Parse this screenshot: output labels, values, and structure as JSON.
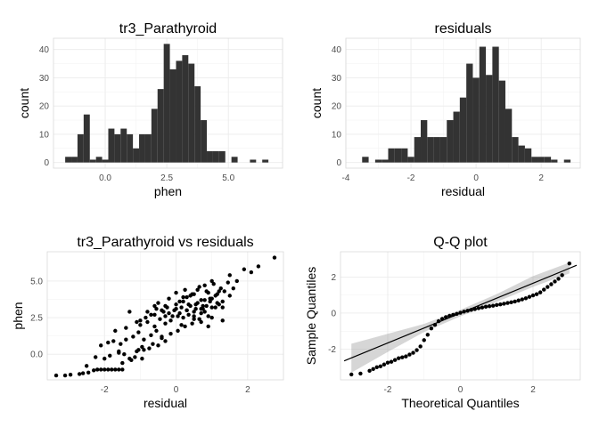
{
  "chart_data": [
    {
      "type": "bar",
      "title": "tr3_Parathyroid",
      "xlabel": "phen",
      "ylabel": "count",
      "xlim": [
        -2.1,
        7.2
      ],
      "ylim": [
        -2,
        44
      ],
      "x_ticks": [
        0,
        2.5,
        5
      ],
      "x_tick_labels": [
        "0.0",
        "2.5",
        "5.0"
      ],
      "y_ticks": [
        0,
        10,
        20,
        30,
        40
      ],
      "bin_width": 0.25,
      "bins": [
        {
          "x": -1.5,
          "count": 2
        },
        {
          "x": -1.25,
          "count": 2
        },
        {
          "x": -1.0,
          "count": 10
        },
        {
          "x": -0.75,
          "count": 17
        },
        {
          "x": -0.5,
          "count": 1
        },
        {
          "x": -0.25,
          "count": 2
        },
        {
          "x": 0.0,
          "count": 1
        },
        {
          "x": 0.25,
          "count": 12
        },
        {
          "x": 0.5,
          "count": 10
        },
        {
          "x": 0.75,
          "count": 12
        },
        {
          "x": 1.0,
          "count": 10
        },
        {
          "x": 1.25,
          "count": 5
        },
        {
          "x": 1.5,
          "count": 10
        },
        {
          "x": 1.75,
          "count": 10
        },
        {
          "x": 2.0,
          "count": 19
        },
        {
          "x": 2.25,
          "count": 26
        },
        {
          "x": 2.5,
          "count": 42
        },
        {
          "x": 2.75,
          "count": 33
        },
        {
          "x": 3.0,
          "count": 36
        },
        {
          "x": 3.25,
          "count": 38
        },
        {
          "x": 3.5,
          "count": 35
        },
        {
          "x": 3.75,
          "count": 27
        },
        {
          "x": 4.0,
          "count": 15
        },
        {
          "x": 4.25,
          "count": 4
        },
        {
          "x": 4.5,
          "count": 4
        },
        {
          "x": 4.75,
          "count": 4
        },
        {
          "x": 5.25,
          "count": 2
        },
        {
          "x": 6.0,
          "count": 1
        },
        {
          "x": 6.5,
          "count": 1
        }
      ]
    },
    {
      "type": "bar",
      "title": "residuals",
      "xlabel": "residual",
      "ylabel": "count",
      "xlim": [
        -4,
        3.2
      ],
      "ylim": [
        -2,
        44
      ],
      "x_ticks": [
        -4,
        -2,
        0,
        2
      ],
      "x_tick_labels": [
        "-4",
        "-2",
        "0",
        "2"
      ],
      "y_ticks": [
        0,
        10,
        20,
        30,
        40
      ],
      "bin_width": 0.2,
      "bins": [
        {
          "x": -3.4,
          "count": 2
        },
        {
          "x": -3.0,
          "count": 1
        },
        {
          "x": -2.8,
          "count": 1
        },
        {
          "x": -2.6,
          "count": 5
        },
        {
          "x": -2.4,
          "count": 5
        },
        {
          "x": -2.2,
          "count": 5
        },
        {
          "x": -2.0,
          "count": 2
        },
        {
          "x": -1.8,
          "count": 9
        },
        {
          "x": -1.6,
          "count": 15
        },
        {
          "x": -1.4,
          "count": 9
        },
        {
          "x": -1.2,
          "count": 9
        },
        {
          "x": -1.0,
          "count": 9
        },
        {
          "x": -0.8,
          "count": 15
        },
        {
          "x": -0.6,
          "count": 18
        },
        {
          "x": -0.4,
          "count": 23
        },
        {
          "x": -0.2,
          "count": 35
        },
        {
          "x": 0.0,
          "count": 30
        },
        {
          "x": 0.2,
          "count": 41
        },
        {
          "x": 0.4,
          "count": 31
        },
        {
          "x": 0.6,
          "count": 41
        },
        {
          "x": 0.8,
          "count": 29
        },
        {
          "x": 1.0,
          "count": 19
        },
        {
          "x": 1.2,
          "count": 9
        },
        {
          "x": 1.4,
          "count": 6
        },
        {
          "x": 1.6,
          "count": 5
        },
        {
          "x": 1.8,
          "count": 2
        },
        {
          "x": 2.0,
          "count": 2
        },
        {
          "x": 2.2,
          "count": 2
        },
        {
          "x": 2.4,
          "count": 1
        },
        {
          "x": 2.8,
          "count": 1
        }
      ]
    },
    {
      "type": "scatter",
      "title": "tr3_Parathyroid vs residuals",
      "xlabel": "residual",
      "ylabel": "phen",
      "xlim": [
        -3.6,
        3.0
      ],
      "ylim": [
        -1.75,
        7.0
      ],
      "x_ticks": [
        -2,
        0,
        2
      ],
      "x_tick_labels": [
        "-2",
        "0",
        "2"
      ],
      "y_ticks": [
        0,
        2.5,
        5
      ],
      "y_tick_labels": [
        "0.0",
        "2.5",
        "5.0"
      ],
      "x": [
        -3.35,
        -3.1,
        -2.95,
        -2.7,
        -2.6,
        -2.45,
        -2.3,
        -2.2,
        -2.1,
        -2.0,
        -1.9,
        -1.8,
        -1.7,
        -1.6,
        -1.5,
        -2.25,
        -2.0,
        -1.85,
        -1.6,
        -1.45,
        -1.3,
        -1.15,
        -1.05,
        -0.95,
        -2.1,
        -1.9,
        -1.75,
        -1.55,
        -1.4,
        -1.2,
        -1.05,
        -0.9,
        -0.7,
        -0.55,
        -0.4,
        -1.7,
        -1.4,
        -1.0,
        -0.8,
        -0.6,
        -0.45,
        -0.3,
        -0.15,
        0.05,
        0.2,
        0.35,
        0.5,
        0.7,
        0.9,
        -1.1,
        -0.85,
        -0.6,
        -0.35,
        -0.1,
        0.1,
        0.3,
        0.5,
        0.7,
        0.85,
        1.0,
        1.15,
        -0.8,
        -0.55,
        -0.3,
        -0.05,
        0.15,
        0.35,
        0.55,
        0.75,
        0.95,
        1.2,
        -0.5,
        -0.25,
        0.0,
        0.2,
        0.4,
        0.6,
        0.8,
        1.0,
        1.3,
        1.5,
        -0.2,
        0.1,
        0.3,
        0.5,
        0.7,
        0.9,
        1.1,
        1.35,
        1.6,
        0.0,
        0.25,
        0.45,
        0.65,
        0.85,
        1.05,
        1.25,
        1.45,
        0.2,
        0.4,
        0.6,
        0.8,
        1.0,
        1.2,
        0.3,
        0.55,
        0.75,
        0.95,
        1.15,
        0.5,
        0.8,
        1.1,
        0.7,
        1.0,
        0.9,
        1.3,
        -0.9,
        -0.65,
        -0.4,
        -0.15,
        0.05,
        0.25,
        0.45,
        0.65,
        -1.5,
        -1.25,
        -1.1,
        -0.95,
        -0.75,
        -0.5,
        -0.3,
        -1.0,
        -0.7,
        -0.4,
        -0.2,
        0.0,
        -0.6,
        -0.3,
        0.15,
        1.5,
        1.7,
        1.9,
        2.1,
        2.3,
        2.75,
        1.3,
        -1.3,
        -1.6,
        -2.5
      ],
      "y": [
        -1.45,
        -1.45,
        -1.4,
        -1.35,
        -1.3,
        -1.25,
        -1.1,
        -1.05,
        -1.05,
        -1.05,
        -1.05,
        -1.05,
        -1.05,
        -1.05,
        -1.05,
        -0.2,
        -0.3,
        -0.1,
        0.1,
        0.0,
        -0.3,
        -0.2,
        0.3,
        0.5,
        0.6,
        0.8,
        0.9,
        0.7,
        1.0,
        1.2,
        1.5,
        1.0,
        1.3,
        1.6,
        1.2,
        1.6,
        1.8,
        2.0,
        2.2,
        1.9,
        2.4,
        2.1,
        2.3,
        2.6,
        2.5,
        2.7,
        2.4,
        2.8,
        2.6,
        2.2,
        2.5,
        2.7,
        2.9,
        2.6,
        2.8,
        3.0,
        2.9,
        3.1,
        3.3,
        3.2,
        3.5,
        2.9,
        3.1,
        3.3,
        3.0,
        3.2,
        3.4,
        3.1,
        3.3,
        3.6,
        3.4,
        3.5,
        3.2,
        3.4,
        3.6,
        3.3,
        3.5,
        3.7,
        3.8,
        3.6,
        4.0,
        3.8,
        3.6,
        3.9,
        4.1,
        3.7,
        4.2,
        4.0,
        4.3,
        4.5,
        4.2,
        4.4,
        4.1,
        4.6,
        4.3,
        4.8,
        4.5,
        4.9,
        3.9,
        4.0,
        4.4,
        4.7,
        5.0,
        4.3,
        3.0,
        3.4,
        3.1,
        3.8,
        4.1,
        2.6,
        2.9,
        3.2,
        2.2,
        2.5,
        1.9,
        2.3,
        0.3,
        0.7,
        1.1,
        1.4,
        1.6,
        1.9,
        2.1,
        2.4,
        -0.6,
        -0.4,
        0.2,
        -0.3,
        0.4,
        0.6,
        0.9,
        2.3,
        2.7,
        3.0,
        2.8,
        3.1,
        3.3,
        2.6,
        2.0,
        5.4,
        5.0,
        5.8,
        5.6,
        6.0,
        6.6,
        3.2,
        2.9,
        0.2,
        -0.8
      ]
    },
    {
      "type": "scatter",
      "title": "Q-Q plot",
      "xlabel": "Theoretical Quantiles",
      "ylabel": "Sample Quantiles",
      "xlim": [
        -3.3,
        3.3
      ],
      "ylim": [
        -3.7,
        3.4
      ],
      "x_ticks": [
        -2,
        0,
        2
      ],
      "x_tick_labels": [
        "-2",
        "0",
        "2"
      ],
      "y_ticks": [
        -2,
        0,
        2
      ],
      "y_tick_labels": [
        "-2",
        "0",
        "2"
      ],
      "reference_line": {
        "x": [
          -3.2,
          3.2
        ],
        "y": [
          -2.65,
          2.65
        ]
      },
      "confidence_band": {
        "x": [
          -3.0,
          -2.0,
          -1.0,
          0.0,
          1.0,
          2.0,
          3.0
        ],
        "lower": [
          -3.3,
          -2.15,
          -1.05,
          -0.18,
          0.62,
          1.45,
          2.2
        ],
        "upper": [
          -1.7,
          -1.15,
          -0.6,
          0.18,
          1.05,
          2.05,
          2.8
        ]
      },
      "x": [
        -3.0,
        -2.75,
        -2.5,
        -2.4,
        -2.3,
        -2.2,
        -2.1,
        -2.0,
        -1.9,
        -1.8,
        -1.7,
        -1.6,
        -1.5,
        -1.4,
        -1.3,
        -1.2,
        -1.1,
        -1.0,
        -0.9,
        -0.8,
        -0.7,
        -0.6,
        -0.5,
        -0.4,
        -0.3,
        -0.2,
        -0.1,
        0.0,
        0.1,
        0.2,
        0.3,
        0.4,
        0.5,
        0.6,
        0.7,
        0.8,
        0.9,
        1.0,
        1.1,
        1.2,
        1.3,
        1.4,
        1.5,
        1.6,
        1.7,
        1.8,
        1.9,
        2.0,
        2.1,
        2.2,
        2.3,
        2.4,
        2.5,
        2.6,
        2.7,
        2.8,
        3.0
      ],
      "y": [
        -3.4,
        -3.35,
        -3.2,
        -3.1,
        -3.0,
        -2.95,
        -2.85,
        -2.75,
        -2.7,
        -2.6,
        -2.5,
        -2.45,
        -2.4,
        -2.3,
        -2.2,
        -2.05,
        -1.85,
        -1.5,
        -1.2,
        -0.85,
        -0.65,
        -0.45,
        -0.32,
        -0.22,
        -0.15,
        -0.1,
        -0.04,
        0.02,
        0.08,
        0.13,
        0.18,
        0.22,
        0.27,
        0.31,
        0.35,
        0.38,
        0.41,
        0.45,
        0.48,
        0.52,
        0.56,
        0.6,
        0.64,
        0.7,
        0.76,
        0.82,
        0.9,
        0.98,
        1.05,
        1.15,
        1.3,
        1.45,
        1.6,
        1.75,
        1.9,
        2.1,
        2.75
      ]
    }
  ]
}
